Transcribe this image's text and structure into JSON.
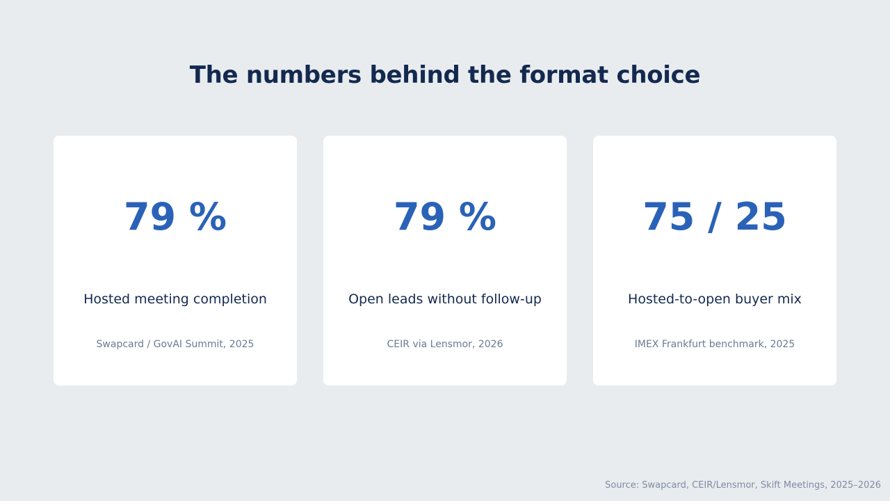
{
  "title": "The numbers behind the format choice",
  "cards": [
    {
      "stat": "79 %",
      "label": "Hosted meeting completion",
      "source": "Swapcard / GovAI Summit, 2025"
    },
    {
      "stat": "79 %",
      "label": "Open leads without follow-up",
      "source": "CEIR via Lensmor, 2026"
    },
    {
      "stat": "75 / 25",
      "label": "Hosted-to-open buyer mix",
      "source": "IMEX Frankfurt benchmark, 2025"
    }
  ],
  "footer": "Source: Swapcard, CEIR/Lensmor, Skift Meetings, 2025–2026",
  "colors": {
    "background": "#e8ecef",
    "card": "#ffffff",
    "title": "#14294f",
    "stat": "#2a62b7",
    "source": "#6b7a93"
  }
}
